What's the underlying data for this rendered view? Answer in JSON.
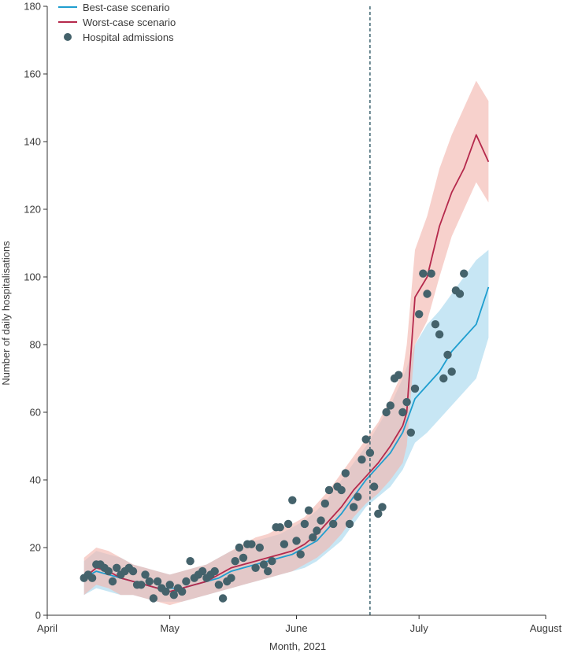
{
  "chart_data": {
    "type": "line",
    "title": "",
    "xlabel": "Month, 2021",
    "ylabel": "Number of daily hospitalisations",
    "x_domain": [
      "2021-04-01",
      "2021-08-01"
    ],
    "ylim": [
      0,
      180
    ],
    "y_ticks": [
      0,
      20,
      40,
      60,
      80,
      100,
      120,
      140,
      160,
      180
    ],
    "x_ticks": [
      {
        "date": "2021-04-01",
        "label": "April"
      },
      {
        "date": "2021-05-01",
        "label": "May"
      },
      {
        "date": "2021-06-01",
        "label": "June"
      },
      {
        "date": "2021-07-01",
        "label": "July"
      },
      {
        "date": "2021-08-01",
        "label": "August"
      }
    ],
    "grid": false,
    "legend_position": "top-left",
    "vertical_marker": {
      "x": "2021-06-19",
      "style": "dashed",
      "color": "#3d6470"
    },
    "series": [
      {
        "name": "Best-case scenario",
        "color": "#1f9ecf",
        "band_color": "#a9d8ee",
        "x": [
          "2021-04-10",
          "2021-04-13",
          "2021-04-16",
          "2021-04-19",
          "2021-04-22",
          "2021-04-25",
          "2021-04-28",
          "2021-05-01",
          "2021-05-04",
          "2021-05-07",
          "2021-05-10",
          "2021-05-13",
          "2021-05-16",
          "2021-05-19",
          "2021-05-22",
          "2021-05-25",
          "2021-05-28",
          "2021-05-31",
          "2021-06-03",
          "2021-06-06",
          "2021-06-09",
          "2021-06-12",
          "2021-06-15",
          "2021-06-18",
          "2021-06-21",
          "2021-06-24",
          "2021-06-27",
          "2021-06-30",
          "2021-07-03",
          "2021-07-06",
          "2021-07-09",
          "2021-07-12",
          "2021-07-15",
          "2021-07-18"
        ],
        "values": [
          11,
          13,
          12,
          11,
          10,
          9,
          8,
          8,
          8,
          9,
          10,
          11,
          13,
          14,
          15,
          16,
          17,
          18,
          20,
          22,
          26,
          30,
          35,
          40,
          44,
          48,
          54,
          64,
          68,
          72,
          78,
          82,
          86,
          97
        ],
        "lower": [
          6,
          8,
          7,
          6,
          6,
          5,
          4,
          4,
          4,
          5,
          6,
          7,
          8,
          9,
          10,
          11,
          12,
          13,
          14,
          16,
          19,
          22,
          27,
          32,
          35,
          38,
          43,
          51,
          54,
          58,
          62,
          66,
          70,
          82
        ],
        "upper": [
          16,
          19,
          18,
          17,
          15,
          14,
          13,
          12,
          13,
          14,
          15,
          17,
          19,
          20,
          22,
          23,
          24,
          26,
          28,
          31,
          35,
          40,
          45,
          50,
          56,
          62,
          70,
          80,
          86,
          90,
          95,
          100,
          105,
          108
        ]
      },
      {
        "name": "Worst-case scenario",
        "color": "#b5294c",
        "band_color": "#f2b8b0",
        "x": [
          "2021-04-10",
          "2021-04-13",
          "2021-04-16",
          "2021-04-19",
          "2021-04-22",
          "2021-04-25",
          "2021-04-28",
          "2021-05-01",
          "2021-05-04",
          "2021-05-07",
          "2021-05-10",
          "2021-05-13",
          "2021-05-16",
          "2021-05-19",
          "2021-05-22",
          "2021-05-25",
          "2021-05-28",
          "2021-05-31",
          "2021-06-03",
          "2021-06-06",
          "2021-06-09",
          "2021-06-12",
          "2021-06-15",
          "2021-06-18",
          "2021-06-21",
          "2021-06-24",
          "2021-06-27",
          "2021-06-28",
          "2021-06-30",
          "2021-07-03",
          "2021-07-06",
          "2021-07-09",
          "2021-07-12",
          "2021-07-15",
          "2021-07-18"
        ],
        "values": [
          11,
          14,
          13,
          11,
          10,
          9,
          8,
          7,
          8,
          9,
          10,
          12,
          14,
          15,
          16,
          17,
          18,
          19,
          21,
          24,
          28,
          32,
          37,
          41,
          45,
          50,
          56,
          60,
          94,
          100,
          115,
          125,
          132,
          142,
          134
        ],
        "lower": [
          6,
          9,
          8,
          6,
          6,
          5,
          4,
          3,
          4,
          5,
          6,
          7,
          8,
          9,
          10,
          11,
          12,
          13,
          15,
          17,
          20,
          24,
          29,
          33,
          36,
          40,
          45,
          50,
          80,
          87,
          100,
          112,
          120,
          128,
          122
        ],
        "upper": [
          17,
          20,
          19,
          17,
          15,
          14,
          13,
          12,
          13,
          14,
          15,
          17,
          19,
          21,
          23,
          24,
          26,
          27,
          29,
          33,
          37,
          42,
          47,
          52,
          57,
          64,
          72,
          80,
          108,
          118,
          132,
          142,
          150,
          158,
          152
        ]
      },
      {
        "name": "Hospital admissions",
        "color": "#44626b",
        "type": "scatter",
        "x": [
          "2021-04-10",
          "2021-04-11",
          "2021-04-12",
          "2021-04-13",
          "2021-04-14",
          "2021-04-15",
          "2021-04-16",
          "2021-04-17",
          "2021-04-18",
          "2021-04-19",
          "2021-04-20",
          "2021-04-21",
          "2021-04-22",
          "2021-04-23",
          "2021-04-24",
          "2021-04-25",
          "2021-04-26",
          "2021-04-27",
          "2021-04-28",
          "2021-04-29",
          "2021-04-30",
          "2021-05-01",
          "2021-05-02",
          "2021-05-03",
          "2021-05-04",
          "2021-05-05",
          "2021-05-06",
          "2021-05-07",
          "2021-05-08",
          "2021-05-09",
          "2021-05-10",
          "2021-05-11",
          "2021-05-12",
          "2021-05-13",
          "2021-05-14",
          "2021-05-15",
          "2021-05-16",
          "2021-05-17",
          "2021-05-18",
          "2021-05-19",
          "2021-05-20",
          "2021-05-21",
          "2021-05-22",
          "2021-05-23",
          "2021-05-24",
          "2021-05-25",
          "2021-05-26",
          "2021-05-27",
          "2021-05-28",
          "2021-05-29",
          "2021-05-30",
          "2021-05-31",
          "2021-06-01",
          "2021-06-02",
          "2021-06-03",
          "2021-06-04",
          "2021-06-05",
          "2021-06-06",
          "2021-06-07",
          "2021-06-08",
          "2021-06-09",
          "2021-06-10",
          "2021-06-11",
          "2021-06-12",
          "2021-06-13",
          "2021-06-14",
          "2021-06-15",
          "2021-06-16",
          "2021-06-17",
          "2021-06-18",
          "2021-06-19",
          "2021-06-20",
          "2021-06-21",
          "2021-06-22",
          "2021-06-23",
          "2021-06-24",
          "2021-06-25",
          "2021-06-26",
          "2021-06-27",
          "2021-06-28",
          "2021-06-29",
          "2021-06-30",
          "2021-07-01",
          "2021-07-02",
          "2021-07-03",
          "2021-07-04",
          "2021-07-05",
          "2021-07-06",
          "2021-07-07",
          "2021-07-08",
          "2021-07-09",
          "2021-07-10",
          "2021-07-11",
          "2021-07-12"
        ],
        "values": [
          11,
          12,
          11,
          15,
          15,
          14,
          13,
          10,
          14,
          12,
          13,
          14,
          13,
          9,
          9,
          12,
          10,
          5,
          10,
          8,
          7,
          9,
          6,
          8,
          7,
          10,
          16,
          11,
          12,
          13,
          11,
          12,
          13,
          9,
          5,
          10,
          11,
          16,
          20,
          17,
          21,
          21,
          14,
          20,
          15,
          13,
          16,
          26,
          26,
          21,
          27,
          34,
          22,
          18,
          27,
          31,
          23,
          25,
          28,
          33,
          37,
          27,
          38,
          37,
          42,
          27,
          32,
          35,
          46,
          52,
          48,
          38,
          30,
          32,
          60,
          62,
          70,
          71,
          60,
          63,
          54,
          67,
          89,
          101,
          95,
          101,
          86,
          83,
          70,
          77,
          72,
          96,
          95,
          101
        ]
      }
    ],
    "legend": [
      "Best-case scenario",
      "Worst-case scenario",
      "Hospital admissions"
    ]
  }
}
